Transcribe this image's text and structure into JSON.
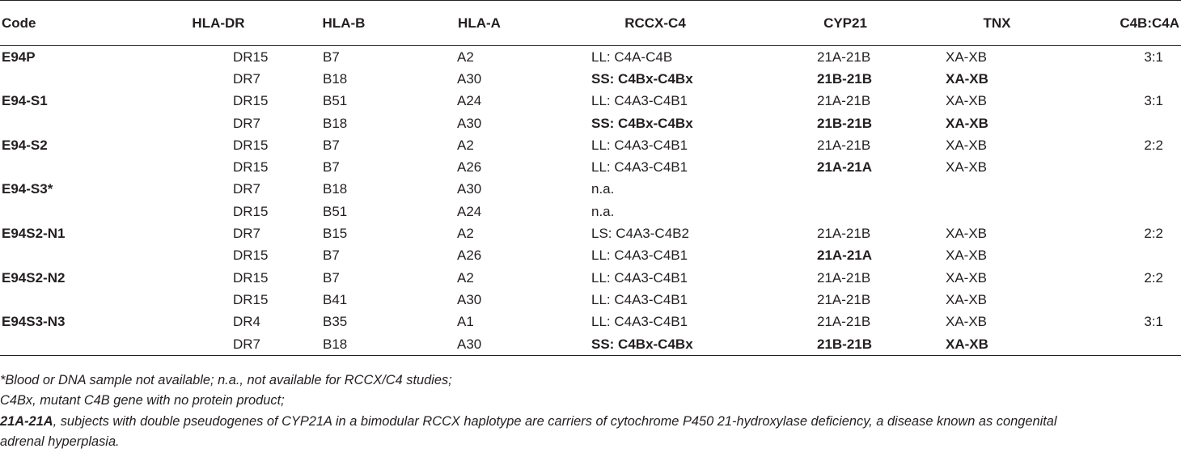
{
  "headers": {
    "code": "Code",
    "hla_dr": "HLA-DR",
    "hla_b": "HLA-B",
    "hla_a": "HLA-A",
    "rccx": "RCCX-C4",
    "cyp21": "CYP21",
    "tnx": "TNX",
    "ratio": "C4B:C4A"
  },
  "rows": [
    {
      "code": "E94P",
      "dr": "DR15",
      "b": "B7",
      "a": "A2",
      "rccx": "LL: C4A-C4B",
      "cyp": "21A-21B",
      "tnx": "XA-XB",
      "ratio": "3:1"
    },
    {
      "code": "",
      "dr": "DR7",
      "b": "B18",
      "a": "A30",
      "rccx": "SS: C4Bx-C4Bx",
      "cyp": "21B-21B",
      "tnx": "XA-XB",
      "ratio": ""
    },
    {
      "code": "E94-S1",
      "dr": "DR15",
      "b": "B51",
      "a": "A24",
      "rccx": "LL: C4A3-C4B1",
      "cyp": "21A-21B",
      "tnx": "XA-XB",
      "ratio": "3:1"
    },
    {
      "code": "",
      "dr": "DR7",
      "b": "B18",
      "a": "A30",
      "rccx": "SS: C4Bx-C4Bx",
      "cyp": "21B-21B",
      "tnx": "XA-XB",
      "ratio": ""
    },
    {
      "code": "E94-S2",
      "dr": "DR15",
      "b": "B7",
      "a": "A2",
      "rccx": "LL: C4A3-C4B1",
      "cyp": "21A-21B",
      "tnx": "XA-XB",
      "ratio": "2:2"
    },
    {
      "code": "",
      "dr": "DR15",
      "b": "B7",
      "a": "A26",
      "rccx": "LL: C4A3-C4B1",
      "cyp": "21A-21A",
      "tnx": "XA-XB",
      "ratio": ""
    },
    {
      "code": "E94-S3*",
      "dr": "DR7",
      "b": "B18",
      "a": "A30",
      "rccx": "n.a.",
      "cyp": "",
      "tnx": "",
      "ratio": ""
    },
    {
      "code": "",
      "dr": "DR15",
      "b": "B51",
      "a": "A24",
      "rccx": "n.a.",
      "cyp": "",
      "tnx": "",
      "ratio": ""
    },
    {
      "code": "E94S2-N1",
      "dr": "DR7",
      "b": "B15",
      "a": "A2",
      "rccx": "LS: C4A3-C4B2",
      "cyp": "21A-21B",
      "tnx": "XA-XB",
      "ratio": "2:2"
    },
    {
      "code": "",
      "dr": "DR15",
      "b": "B7",
      "a": "A26",
      "rccx": "LL: C4A3-C4B1",
      "cyp": "21A-21A",
      "tnx": "XA-XB",
      "ratio": ""
    },
    {
      "code": "E94S2-N2",
      "dr": "DR15",
      "b": "B7",
      "a": "A2",
      "rccx": "LL: C4A3-C4B1",
      "cyp": "21A-21B",
      "tnx": "XA-XB",
      "ratio": "2:2"
    },
    {
      "code": "",
      "dr": "DR15",
      "b": "B41",
      "a": "A30",
      "rccx": "LL: C4A3-C4B1",
      "cyp": "21A-21B",
      "tnx": "XA-XB",
      "ratio": ""
    },
    {
      "code": "E94S3-N3",
      "dr": "DR4",
      "b": "B35",
      "a": "A1",
      "rccx": "LL: C4A3-C4B1",
      "cyp": "21A-21B",
      "tnx": "XA-XB",
      "ratio": "3:1"
    },
    {
      "code": "",
      "dr": "DR7",
      "b": "B18",
      "a": "A30",
      "rccx": "SS: C4Bx-C4Bx",
      "cyp": "21B-21B",
      "tnx": "XA-XB",
      "ratio": ""
    }
  ],
  "footnotes": {
    "line1": "*Blood or DNA sample not available; n.a., not available for RCCX/C4 studies;",
    "line2": "C4Bx, mutant C4B gene with no protein product;",
    "line3_term": "21A-21A",
    "line3_text": ", subjects with double pseudogenes of CYP21A in a bimodular RCCX haplotype are carriers of cytochrome P450 21-hydroxylase deficiency, a disease known as congenital",
    "line4": "adrenal hyperplasia."
  }
}
